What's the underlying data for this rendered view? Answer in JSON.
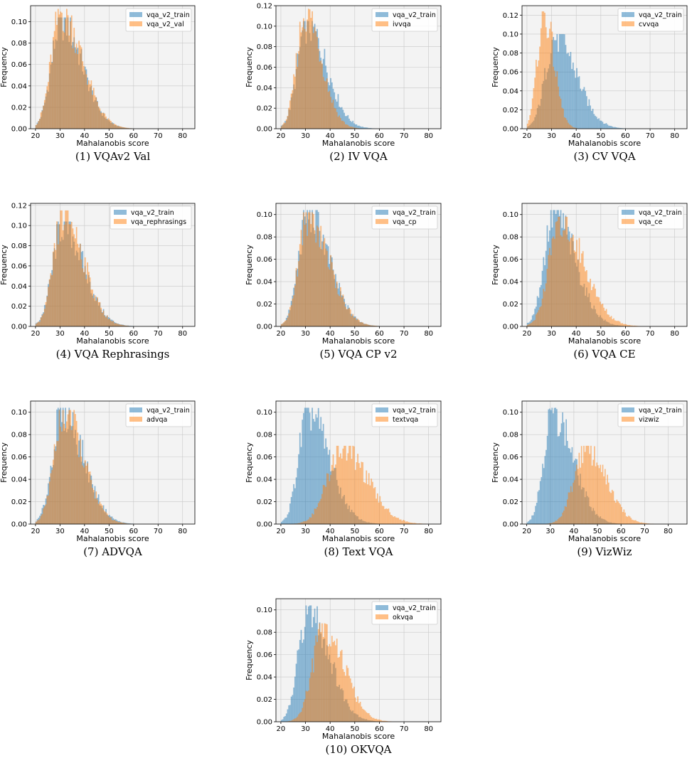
{
  "colors": {
    "train": "#1f77b4",
    "test": "#ff7f0e",
    "panel_bg": "#f3f3f3",
    "grid": "#c8c8c8"
  },
  "chart_data": [
    {
      "type": "histogram",
      "caption": "(1) VQAv2 Val",
      "xlabel": "Mahalanobis score",
      "ylabel": "Frequency",
      "xlim": [
        18,
        85
      ],
      "ylim": [
        0,
        0.115
      ],
      "xticks": [
        20,
        30,
        40,
        50,
        60,
        70,
        80
      ],
      "yticks": [
        0.0,
        0.02,
        0.04,
        0.06,
        0.08,
        0.1
      ],
      "grid": true,
      "legend": "top-right",
      "alpha": 0.5,
      "series": [
        {
          "name": "vqa_v2_train",
          "shape": [
            30.5,
            4.0,
            8.5
          ],
          "peak": 0.104
        },
        {
          "name": "vqa_v2_val",
          "shape": [
            30.5,
            4.0,
            8.5
          ],
          "peak": 0.112
        }
      ]
    },
    {
      "type": "histogram",
      "caption": "(2) IV VQA",
      "xlabel": "Mahalanobis score",
      "ylabel": "Frequency",
      "xlim": [
        18,
        85
      ],
      "ylim": [
        0,
        0.12
      ],
      "xticks": [
        20,
        30,
        40,
        50,
        60,
        70,
        80
      ],
      "yticks": [
        0.0,
        0.02,
        0.04,
        0.06,
        0.08,
        0.1,
        0.12
      ],
      "grid": true,
      "legend": "top-right",
      "alpha": 0.5,
      "series": [
        {
          "name": "vqa_v2_train",
          "shape": [
            30.5,
            3.8,
            8.0
          ],
          "peak": 0.105
        },
        {
          "name": "ivvqa",
          "shape": [
            30.0,
            3.5,
            6.5
          ],
          "peak": 0.117
        }
      ]
    },
    {
      "type": "histogram",
      "caption": "(3) CV VQA",
      "xlabel": "Mahalanobis score",
      "ylabel": "Frequency",
      "xlim": [
        18,
        85
      ],
      "ylim": [
        0,
        0.13
      ],
      "xticks": [
        20,
        30,
        40,
        50,
        60,
        70,
        80
      ],
      "yticks": [
        0.0,
        0.02,
        0.04,
        0.06,
        0.08,
        0.1,
        0.12
      ],
      "grid": true,
      "legend": "top-right",
      "alpha": 0.5,
      "series": [
        {
          "name": "vqa_v2_train",
          "shape": [
            31.5,
            4.0,
            8.5
          ],
          "peak": 0.1
        },
        {
          "name": "cvvqa",
          "shape": [
            27.0,
            2.8,
            4.0
          ],
          "peak": 0.124
        }
      ]
    },
    {
      "type": "histogram",
      "caption": "(4) VQA Rephrasings",
      "xlabel": "Mahalanobis score",
      "ylabel": "Frequency",
      "xlim": [
        18,
        85
      ],
      "ylim": [
        0,
        0.122
      ],
      "xticks": [
        20,
        30,
        40,
        50,
        60,
        70,
        80
      ],
      "yticks": [
        0.0,
        0.02,
        0.04,
        0.06,
        0.08,
        0.1,
        0.12
      ],
      "grid": true,
      "legend": "top-right",
      "alpha": 0.5,
      "series": [
        {
          "name": "vqa_v2_train",
          "shape": [
            31.0,
            4.0,
            8.5
          ],
          "peak": 0.104
        },
        {
          "name": "vqa_rephrasings",
          "shape": [
            31.5,
            4.0,
            8.0
          ],
          "peak": 0.115
        }
      ]
    },
    {
      "type": "histogram",
      "caption": "(5) VQA CP v2",
      "xlabel": "Mahalanobis score",
      "ylabel": "Frequency",
      "xlim": [
        18,
        85
      ],
      "ylim": [
        0,
        0.11
      ],
      "xticks": [
        20,
        30,
        40,
        50,
        60,
        70,
        80
      ],
      "yticks": [
        0.0,
        0.02,
        0.04,
        0.06,
        0.08,
        0.1
      ],
      "grid": true,
      "legend": "top-right",
      "alpha": 0.5,
      "series": [
        {
          "name": "vqa_v2_train",
          "shape": [
            31.0,
            3.8,
            8.5
          ],
          "peak": 0.104
        },
        {
          "name": "vqa_cp",
          "shape": [
            31.0,
            3.8,
            8.5
          ],
          "peak": 0.102
        }
      ]
    },
    {
      "type": "histogram",
      "caption": "(6) VQA CE",
      "xlabel": "Mahalanobis score",
      "ylabel": "Frequency",
      "xlim": [
        18,
        85
      ],
      "ylim": [
        0,
        0.11
      ],
      "xticks": [
        20,
        30,
        40,
        50,
        60,
        70,
        80
      ],
      "yticks": [
        0.0,
        0.02,
        0.04,
        0.06,
        0.08,
        0.1
      ],
      "grid": true,
      "legend": "top-right",
      "alpha": 0.5,
      "series": [
        {
          "name": "vqa_v2_train",
          "shape": [
            31.0,
            4.0,
            8.5
          ],
          "peak": 0.104
        },
        {
          "name": "vqa_ce",
          "shape": [
            33.5,
            4.5,
            9.5
          ],
          "peak": 0.098
        }
      ]
    },
    {
      "type": "histogram",
      "caption": "(7) ADVQA",
      "xlabel": "Mahalanobis score",
      "ylabel": "Frequency",
      "xlim": [
        18,
        85
      ],
      "ylim": [
        0,
        0.11
      ],
      "xticks": [
        20,
        30,
        40,
        50,
        60,
        70,
        80
      ],
      "yticks": [
        0.0,
        0.02,
        0.04,
        0.06,
        0.08,
        0.1
      ],
      "grid": true,
      "legend": "top-right",
      "alpha": 0.5,
      "series": [
        {
          "name": "vqa_v2_train",
          "shape": [
            31.0,
            4.0,
            8.5
          ],
          "peak": 0.104
        },
        {
          "name": "advqa",
          "shape": [
            31.5,
            4.0,
            8.0
          ],
          "peak": 0.102
        }
      ]
    },
    {
      "type": "histogram",
      "caption": "(8) Text VQA",
      "xlabel": "Mahalanobis score",
      "ylabel": "Frequency",
      "xlim": [
        18,
        85
      ],
      "ylim": [
        0,
        0.11
      ],
      "xticks": [
        20,
        30,
        40,
        50,
        60,
        70,
        80
      ],
      "yticks": [
        0.0,
        0.02,
        0.04,
        0.06,
        0.08,
        0.1
      ],
      "grid": true,
      "legend": "top-right",
      "alpha": 0.5,
      "series": [
        {
          "name": "vqa_v2_train",
          "shape": [
            31.0,
            3.8,
            8.5
          ],
          "peak": 0.104
        },
        {
          "name": "textvqa",
          "shape": [
            45.0,
            6.0,
            10.0
          ],
          "peak": 0.07
        }
      ]
    },
    {
      "type": "histogram",
      "caption": "(9) VizWiz",
      "xlabel": "Mahalanobis score",
      "ylabel": "Frequency",
      "xlim": [
        18,
        88
      ],
      "ylim": [
        0,
        0.11
      ],
      "xticks": [
        20,
        30,
        40,
        50,
        60,
        70,
        80
      ],
      "yticks": [
        0.0,
        0.02,
        0.04,
        0.06,
        0.08,
        0.1
      ],
      "grid": true,
      "legend": "top-right",
      "alpha": 0.5,
      "series": [
        {
          "name": "vqa_v2_train",
          "shape": [
            31.0,
            3.8,
            8.5
          ],
          "peak": 0.104
        },
        {
          "name": "vizwiz",
          "shape": [
            45.0,
            5.0,
            8.5
          ],
          "peak": 0.07
        }
      ]
    },
    {
      "type": "histogram",
      "caption": "(10) OKVQA",
      "xlabel": "Mahalanobis score",
      "ylabel": "Frequency",
      "xlim": [
        18,
        85
      ],
      "ylim": [
        0,
        0.11
      ],
      "xticks": [
        20,
        30,
        40,
        50,
        60,
        70,
        80
      ],
      "yticks": [
        0.0,
        0.02,
        0.04,
        0.06,
        0.08,
        0.1
      ],
      "grid": true,
      "legend": "top-right",
      "alpha": 0.5,
      "series": [
        {
          "name": "vqa_v2_train",
          "shape": [
            31.0,
            3.8,
            8.5
          ],
          "peak": 0.104
        },
        {
          "name": "okvqa",
          "shape": [
            37.5,
            4.5,
            8.0
          ],
          "peak": 0.088
        }
      ]
    }
  ]
}
